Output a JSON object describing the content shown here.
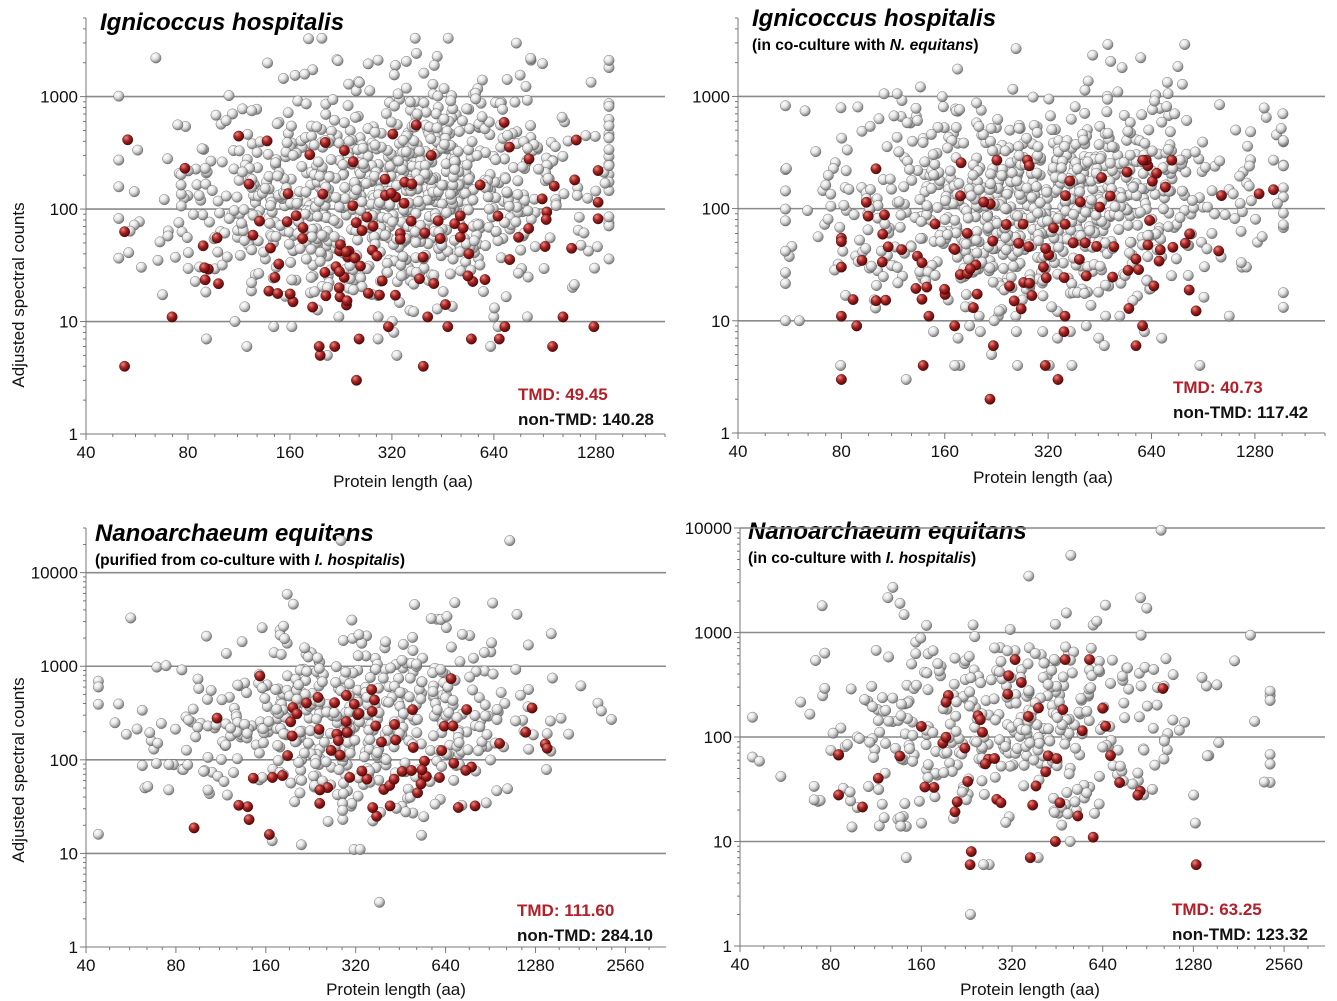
{
  "colors": {
    "tmd_point": "#9e1b1b",
    "non_tmd_point": "#d9d9d9",
    "tmd_label": "#b3202a",
    "non_tmd_label": "#111111",
    "gridline": "#8a8a8a"
  },
  "chart_data": [
    {
      "type": "scatter",
      "title": "Ignicoccus hospitalis",
      "subtitle_prefix": "",
      "subtitle_italic": "",
      "subtitle_suffix": "",
      "xlabel": "Protein length (aa)",
      "ylabel": "Adjusted spectral counts",
      "x_scale": "log",
      "y_scale": "log",
      "xlim": [
        40,
        2048
      ],
      "ylim": [
        1,
        5000
      ],
      "x_ticks": [
        40,
        80,
        160,
        320,
        640,
        1280
      ],
      "y_ticks": [
        1,
        10,
        100,
        1000
      ],
      "grid": "horizontal",
      "legend_tmd": "TMD: 49.45",
      "legend_non_tmd": "non-TMD: 140.28",
      "series": [
        {
          "type": "non-TMD",
          "n_points_approx": 980,
          "median": 140.28,
          "x_range": [
            50,
            1400
          ],
          "y_range": [
            2,
            3300
          ]
        },
        {
          "type": "TMD",
          "n_points_approx": 120,
          "median": 49.45,
          "x_range": [
            52,
            1300
          ],
          "y_range": [
            2,
            700
          ]
        }
      ],
      "highlighted_points": {
        "x": [
          52,
          380,
          540,
          620,
          1300,
          90
        ],
        "y": [
          4,
          700,
          40,
          100,
          220,
          230
        ]
      }
    },
    {
      "type": "scatter",
      "title": "Ignicoccus hospitalis",
      "subtitle_prefix": "(in co-culture with ",
      "subtitle_italic": "N. equitans",
      "subtitle_suffix": ")",
      "xlabel": "Protein length (aa)",
      "ylabel": "",
      "x_scale": "log",
      "y_scale": "log",
      "xlim": [
        40,
        2048
      ],
      "ylim": [
        1,
        5000
      ],
      "x_ticks": [
        40,
        80,
        160,
        320,
        640,
        1280
      ],
      "y_ticks": [
        1,
        10,
        100,
        1000
      ],
      "grid": "horizontal",
      "legend_tmd": "TMD: 40.73",
      "legend_non_tmd": "non-TMD: 117.42",
      "series": [
        {
          "type": "non-TMD",
          "n_points_approx": 900,
          "median": 117.42,
          "x_range": [
            55,
            1550
          ],
          "y_range": [
            2,
            2900
          ]
        },
        {
          "type": "TMD",
          "n_points_approx": 110,
          "median": 40.73,
          "x_range": [
            80,
            1450
          ],
          "y_range": [
            2,
            270
          ]
        }
      ],
      "highlighted_points": {
        "x": [
          800,
          1450,
          240,
          960
        ],
        "y": [
          2900,
          270,
          100,
          60
        ]
      }
    },
    {
      "type": "scatter",
      "title": "Nanoarchaeum equitans",
      "subtitle_prefix": "(purified from co-culture with ",
      "subtitle_italic": "I. hospitalis",
      "subtitle_suffix": ")",
      "xlabel": "Protein length (aa)",
      "ylabel": "Adjusted spectral counts",
      "x_scale": "log",
      "y_scale": "log",
      "xlim": [
        40,
        3500
      ],
      "ylim": [
        1,
        30000
      ],
      "x_ticks": [
        40,
        80,
        160,
        320,
        640,
        1280,
        2560
      ],
      "y_ticks": [
        1,
        10,
        100,
        1000,
        10000
      ],
      "grid": "horizontal",
      "legend_tmd": "TMD: 111.60",
      "legend_non_tmd": "non-TMD: 284.10",
      "series": [
        {
          "type": "non-TMD",
          "n_points_approx": 540,
          "median": 284.1,
          "x_range": [
            44,
            2300
          ],
          "y_range": [
            2,
            22000
          ]
        },
        {
          "type": "TMD",
          "n_points_approx": 75,
          "median": 111.6,
          "x_range": [
            85,
            1400
          ],
          "y_range": [
            2,
            1300
          ]
        }
      ],
      "highlighted_points": {
        "x": [
          1050,
          44,
          2300,
          1400
        ],
        "y": [
          22000,
          16,
          270,
          190
        ]
      }
    },
    {
      "type": "scatter",
      "title": "Nanoarchaeum equitans",
      "subtitle_prefix": "(in co-culture with ",
      "subtitle_italic": "I. hospitalis",
      "subtitle_suffix": ")",
      "xlabel": "Protein length (aa)",
      "ylabel": "",
      "x_scale": "log",
      "y_scale": "log",
      "xlim": [
        40,
        3500
      ],
      "ylim": [
        1,
        10000
      ],
      "x_ticks": [
        40,
        80,
        160,
        320,
        640,
        1280,
        2560
      ],
      "y_ticks": [
        1,
        10,
        100,
        1000,
        10000
      ],
      "grid": "horizontal",
      "legend_tmd": "TMD: 63.25",
      "legend_non_tmd": "non-TMD: 123.32",
      "series": [
        {
          "type": "non-TMD",
          "n_points_approx": 420,
          "median": 123.32,
          "x_range": [
            44,
            2300
          ],
          "y_range": [
            1,
            9500
          ]
        },
        {
          "type": "TMD",
          "n_points_approx": 55,
          "median": 63.25,
          "x_range": [
            85,
            1400
          ],
          "y_range": [
            2,
            550
          ]
        }
      ],
      "highlighted_points": {
        "x": [
          1000,
          75,
          2300,
          1300
        ],
        "y": [
          9500,
          1800,
          55,
          15
        ]
      }
    }
  ]
}
